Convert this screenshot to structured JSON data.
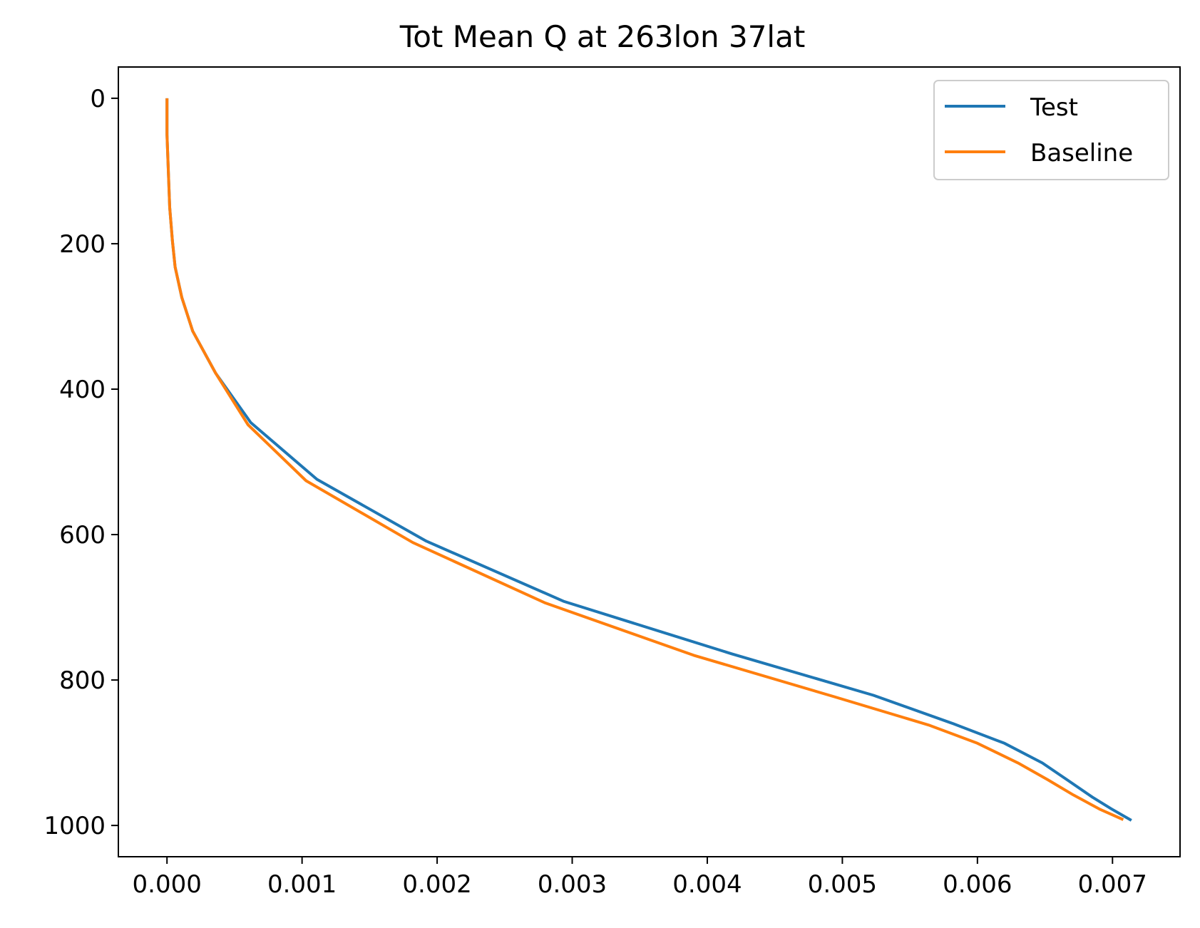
{
  "chart_data": {
    "type": "line",
    "title": "Tot Mean Q at 263lon 37lat",
    "xlabel": "",
    "ylabel": "",
    "xlim": [
      -0.00036,
      0.0075
    ],
    "ylim": [
      1043,
      -43
    ],
    "y_inverted": true,
    "grid": false,
    "legend_position": "top-right",
    "x_ticks": [
      "0.000",
      "0.001",
      "0.002",
      "0.003",
      "0.004",
      "0.005",
      "0.006",
      "0.007"
    ],
    "x_tick_values": [
      0,
      0.001,
      0.002,
      0.003,
      0.004,
      0.005,
      0.006,
      0.007
    ],
    "y_ticks": [
      "0",
      "200",
      "400",
      "600",
      "800",
      "1000"
    ],
    "y_tick_values": [
      0,
      200,
      400,
      600,
      800,
      1000
    ],
    "series": [
      {
        "name": "Test",
        "color": "#1f77b4",
        "points": [
          [
            0.0,
            0
          ],
          [
            0.0,
            50
          ],
          [
            1e-05,
            100
          ],
          [
            2e-05,
            150
          ],
          [
            4e-05,
            196
          ],
          [
            6e-05,
            232
          ],
          [
            0.00011,
            274
          ],
          [
            0.00019,
            320
          ],
          [
            0.00036,
            378
          ],
          [
            0.00062,
            446
          ],
          [
            0.00111,
            524
          ],
          [
            0.00192,
            609
          ],
          [
            0.00294,
            692
          ],
          [
            0.00418,
            764
          ],
          [
            0.00523,
            821
          ],
          [
            0.00582,
            860
          ],
          [
            0.0062,
            887
          ],
          [
            0.00648,
            914
          ],
          [
            0.00667,
            938
          ],
          [
            0.00685,
            961
          ],
          [
            0.00699,
            977
          ],
          [
            0.00714,
            993
          ]
        ]
      },
      {
        "name": "Baseline",
        "color": "#ff7f0e",
        "points": [
          [
            0.0,
            0
          ],
          [
            0.0,
            50
          ],
          [
            1e-05,
            100
          ],
          [
            2e-05,
            150
          ],
          [
            4e-05,
            196
          ],
          [
            6e-05,
            232
          ],
          [
            0.00011,
            274
          ],
          [
            0.00019,
            320
          ],
          [
            0.00036,
            378
          ],
          [
            0.0006,
            449
          ],
          [
            0.00103,
            526
          ],
          [
            0.00182,
            611
          ],
          [
            0.0028,
            694
          ],
          [
            0.0039,
            766
          ],
          [
            0.00494,
            823
          ],
          [
            0.00564,
            862
          ],
          [
            0.006,
            887
          ],
          [
            0.0063,
            914
          ],
          [
            0.00652,
            937
          ],
          [
            0.00671,
            958
          ],
          [
            0.00691,
            978
          ],
          [
            0.00708,
            992
          ]
        ]
      }
    ]
  }
}
